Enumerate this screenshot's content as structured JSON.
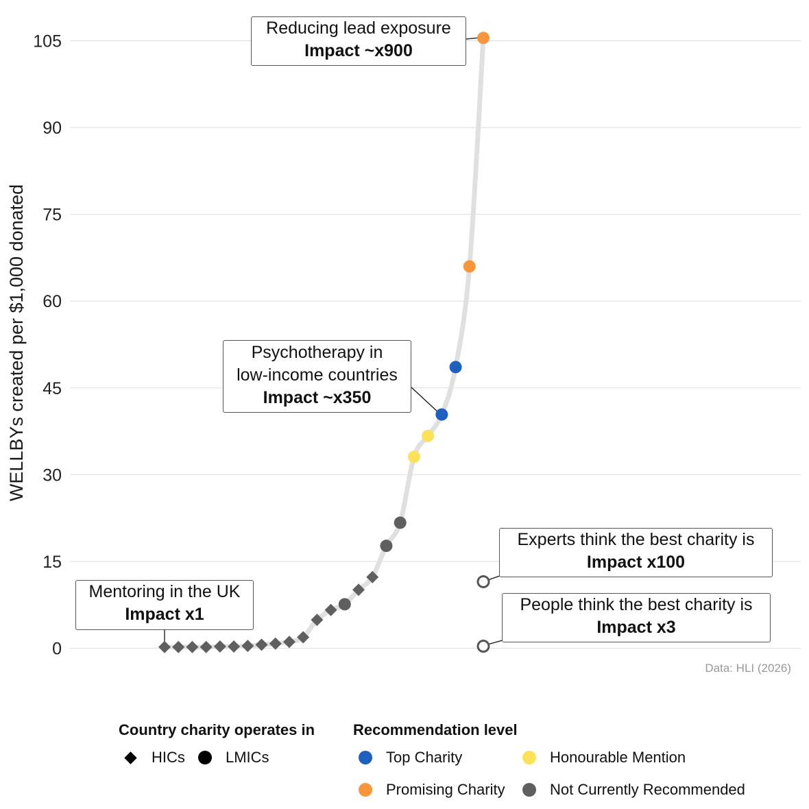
{
  "chart_data": {
    "type": "scatter",
    "title": "",
    "xlabel": "",
    "ylabel": "WELLBYs created per $1,000 donated",
    "ylim": [
      0,
      105
    ],
    "yticks": [
      0,
      15,
      30,
      45,
      60,
      75,
      90,
      105
    ],
    "xlim": [
      1,
      24
    ],
    "x_description": "charities ranked by cost-effectiveness (no axis labels)",
    "grid": true,
    "source": "Data: HLI (2026)",
    "points": [
      {
        "rank": 1,
        "value": 0.2,
        "country": "HICs",
        "level": "Not Currently Recommended"
      },
      {
        "rank": 2,
        "value": 0.2,
        "country": "HICs",
        "level": "Not Currently Recommended"
      },
      {
        "rank": 3,
        "value": 0.2,
        "country": "HICs",
        "level": "Not Currently Recommended"
      },
      {
        "rank": 4,
        "value": 0.2,
        "country": "HICs",
        "level": "Not Currently Recommended"
      },
      {
        "rank": 5,
        "value": 0.3,
        "country": "HICs",
        "level": "Not Currently Recommended"
      },
      {
        "rank": 6,
        "value": 0.3,
        "country": "HICs",
        "level": "Not Currently Recommended"
      },
      {
        "rank": 7,
        "value": 0.4,
        "country": "HICs",
        "level": "Not Currently Recommended"
      },
      {
        "rank": 8,
        "value": 0.6,
        "country": "HICs",
        "level": "Not Currently Recommended"
      },
      {
        "rank": 9,
        "value": 0.8,
        "country": "HICs",
        "level": "Not Currently Recommended"
      },
      {
        "rank": 10,
        "value": 1.1,
        "country": "HICs",
        "level": "Not Currently Recommended"
      },
      {
        "rank": 11,
        "value": 1.9,
        "country": "HICs",
        "level": "Not Currently Recommended"
      },
      {
        "rank": 12,
        "value": 4.9,
        "country": "HICs",
        "level": "Not Currently Recommended"
      },
      {
        "rank": 13,
        "value": 6.6,
        "country": "HICs",
        "level": "Not Currently Recommended"
      },
      {
        "rank": 14,
        "value": 7.6,
        "country": "LMICs",
        "level": "Not Currently Recommended"
      },
      {
        "rank": 15,
        "value": 10.1,
        "country": "HICs",
        "level": "Not Currently Recommended"
      },
      {
        "rank": 16,
        "value": 12.3,
        "country": "HICs",
        "level": "Not Currently Recommended"
      },
      {
        "rank": 17,
        "value": 17.7,
        "country": "LMICs",
        "level": "Not Currently Recommended"
      },
      {
        "rank": 18,
        "value": 21.7,
        "country": "LMICs",
        "level": "Not Currently Recommended"
      },
      {
        "rank": 19,
        "value": 33.1,
        "country": "LMICs",
        "level": "Honourable Mention"
      },
      {
        "rank": 20,
        "value": 36.7,
        "country": "LMICs",
        "level": "Honourable Mention"
      },
      {
        "rank": 21,
        "value": 40.4,
        "country": "LMICs",
        "level": "Top Charity"
      },
      {
        "rank": 22,
        "value": 48.6,
        "country": "LMICs",
        "level": "Top Charity"
      },
      {
        "rank": 23,
        "value": 66.0,
        "country": "LMICs",
        "level": "Promising Charity"
      },
      {
        "rank": 24,
        "value": 105.5,
        "country": "LMICs",
        "level": "Promising Charity"
      }
    ],
    "benchmarks": [
      {
        "rank": 24,
        "value": 11.5,
        "label": "Experts think the best charity is",
        "impact": "Impact x100"
      },
      {
        "rank": 24,
        "value": 0.35,
        "label": "People think the best charity is",
        "impact": "Impact x3"
      }
    ],
    "annotations": [
      {
        "id": "lead",
        "rank": 24,
        "line1": "Reducing lead exposure",
        "line2": "",
        "impact": "Impact ~x900"
      },
      {
        "id": "psych",
        "rank": 21,
        "line1": "Psychotherapy in",
        "line2": "low-income countries",
        "impact": "Impact ~x350"
      },
      {
        "id": "mentor",
        "rank": 1,
        "line1": "Mentoring in the UK",
        "line2": "",
        "impact": "Impact x1"
      }
    ],
    "colors": {
      "Top Charity": "#1f5fbf",
      "Promising Charity": "#f7963a",
      "Honourable Mention": "#fbe25a",
      "Not Currently Recommended": "#5f5f5f",
      "curve": "#e0e0e0",
      "benchmark_stroke": "#555555"
    },
    "legend": {
      "country_title": "Country charity operates in",
      "country_items": [
        "HICs",
        "LMICs"
      ],
      "level_title": "Recommendation level",
      "level_items": [
        "Top Charity",
        "Honourable Mention",
        "Promising Charity",
        "Not Currently Recommended"
      ],
      "placement": "bottom"
    }
  }
}
